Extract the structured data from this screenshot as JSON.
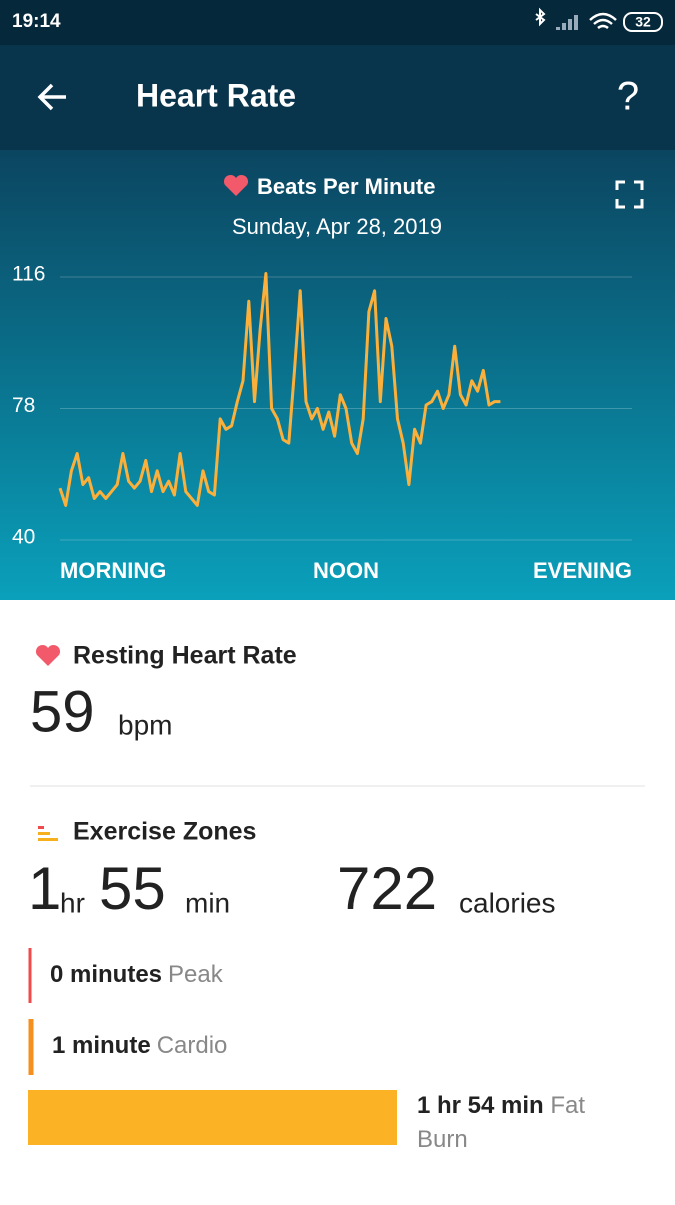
{
  "status_bar": {
    "time": "19:14",
    "battery": "32"
  },
  "header": {
    "title": "Heart Rate",
    "help": "?"
  },
  "chart_data": {
    "type": "line",
    "title": "Beats Per Minute",
    "subtitle": "Sunday, Apr 28, 2019",
    "color": "#fbb03b",
    "x": [
      0,
      1,
      2,
      3,
      4,
      5,
      6,
      7,
      8,
      9,
      10,
      11,
      12,
      13,
      14,
      15,
      16,
      17,
      18,
      19,
      20,
      21,
      22,
      23,
      24,
      25,
      26,
      27,
      28,
      29,
      30,
      31,
      32,
      33,
      34,
      35,
      36,
      37,
      38,
      39,
      40,
      41,
      42,
      43,
      44,
      45,
      46,
      47,
      48,
      49,
      50,
      51,
      52,
      53,
      54,
      55,
      56,
      57,
      58,
      59,
      60,
      61,
      62,
      63,
      64,
      65,
      66,
      67,
      68,
      69,
      70,
      71,
      72,
      73,
      74,
      75,
      76,
      77
    ],
    "values": [
      55,
      50,
      60,
      65,
      56,
      58,
      52,
      54,
      52,
      54,
      56,
      65,
      57,
      55,
      57,
      63,
      54,
      60,
      54,
      57,
      53,
      65,
      54,
      52,
      50,
      60,
      54,
      53,
      75,
      72,
      73,
      80,
      86,
      109,
      80,
      101,
      117,
      78,
      75,
      69,
      68,
      89,
      112,
      80,
      75,
      78,
      72,
      77,
      70,
      82,
      78,
      68,
      65,
      75,
      106,
      112,
      80,
      104,
      96,
      75,
      68,
      56,
      72,
      68,
      79,
      80,
      83,
      78,
      82,
      96,
      82,
      79,
      86,
      83,
      89,
      79,
      80,
      80
    ],
    "xlim": [
      0,
      100
    ],
    "xticks": [
      {
        "value": 0,
        "label": "MORNING"
      },
      {
        "value": 50,
        "label": "NOON"
      },
      {
        "value": 100,
        "label": "EVENING"
      }
    ],
    "ylim": [
      40,
      116
    ],
    "yticks": [
      40,
      78,
      116
    ],
    "grid": true
  },
  "resting": {
    "title": "Resting Heart Rate",
    "value": "59",
    "unit": "bpm"
  },
  "zones": {
    "title": "Exercise Zones",
    "duration": {
      "hours": "1",
      "hours_unit": "hr",
      "minutes": "55",
      "minutes_unit": "min"
    },
    "calories": {
      "value": "722",
      "unit": "calories"
    },
    "items": [
      {
        "amount": "0 minutes",
        "name": "Peak"
      },
      {
        "amount": "1 minute",
        "name": "Cardio"
      },
      {
        "amount": "1 hr 54 min",
        "name": "Fat Burn"
      }
    ]
  }
}
